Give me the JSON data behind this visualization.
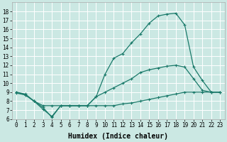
{
  "bg_color": "#cbe8e3",
  "grid_color": "#ffffff",
  "line_color": "#1a7a6a",
  "xlabel": "Humidex (Indice chaleur)",
  "xlim": [
    -0.5,
    23.5
  ],
  "ylim": [
    6,
    19
  ],
  "xticks": [
    0,
    1,
    2,
    3,
    4,
    5,
    6,
    7,
    8,
    9,
    10,
    11,
    12,
    13,
    14,
    15,
    16,
    17,
    18,
    19,
    20,
    21,
    22,
    23
  ],
  "yticks": [
    6,
    7,
    8,
    9,
    10,
    11,
    12,
    13,
    14,
    15,
    16,
    17,
    18
  ],
  "curve_max_x": [
    0,
    1,
    2,
    3,
    4,
    5,
    6,
    7,
    8,
    9,
    10,
    11,
    12,
    13,
    14,
    15,
    16,
    17,
    18,
    19,
    20,
    21,
    22,
    23
  ],
  "curve_max_y": [
    9.0,
    8.8,
    8.0,
    7.3,
    6.2,
    7.5,
    7.5,
    7.5,
    7.5,
    8.5,
    11.0,
    12.8,
    13.3,
    14.5,
    15.5,
    16.7,
    17.5,
    17.7,
    17.8,
    16.5,
    11.8,
    10.3,
    9.0,
    9.0
  ],
  "curve_mid_x": [
    0,
    1,
    2,
    3,
    4,
    5,
    6,
    7,
    8,
    9,
    10,
    11,
    12,
    13,
    14,
    15,
    16,
    17,
    18,
    19,
    20,
    21,
    22,
    23
  ],
  "curve_mid_y": [
    9.0,
    8.7,
    8.0,
    7.1,
    6.3,
    7.5,
    7.5,
    7.5,
    7.5,
    8.5,
    9.0,
    9.5,
    10.0,
    10.5,
    11.2,
    11.5,
    11.7,
    11.9,
    12.0,
    11.8,
    10.5,
    9.2,
    9.0,
    9.0
  ],
  "curve_min_x": [
    0,
    1,
    2,
    3,
    4,
    5,
    6,
    7,
    8,
    9,
    10,
    11,
    12,
    13,
    14,
    15,
    16,
    17,
    18,
    19,
    20,
    21,
    22,
    23
  ],
  "curve_min_y": [
    8.9,
    8.7,
    8.0,
    7.5,
    7.5,
    7.5,
    7.5,
    7.5,
    7.5,
    7.5,
    7.5,
    7.5,
    7.7,
    7.8,
    8.0,
    8.2,
    8.4,
    8.6,
    8.8,
    9.0,
    9.0,
    9.0,
    9.0,
    9.0
  ],
  "marker": "+",
  "markersize": 3,
  "linewidth": 0.9,
  "xlabel_fontsize": 7,
  "tick_fontsize": 5.5
}
